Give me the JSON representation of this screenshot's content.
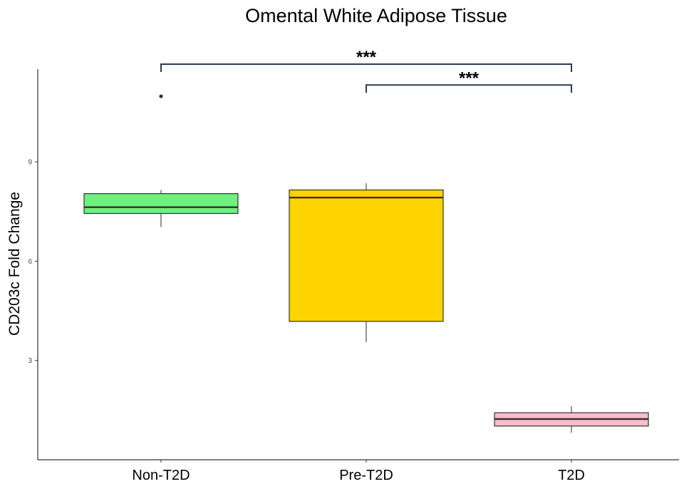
{
  "chart_data": {
    "type": "box",
    "title": "Omental White Adipose Tissue",
    "xlabel": "",
    "ylabel": "CD203c Fold Change",
    "ylim": [
      0.0,
      11.8
    ],
    "yticks": [
      3,
      6,
      9
    ],
    "grid": false,
    "legend": "none",
    "categories": [
      "Non-T2D",
      "Pre-T2D",
      "T2D"
    ],
    "boxes": [
      {
        "category": "Non-T2D",
        "whisker_low": 7.03,
        "q1": 7.44,
        "median": 7.63,
        "q3": 8.04,
        "whisker_high": 8.15,
        "outliers": [
          10.98
        ],
        "color": "#6ef07e"
      },
      {
        "category": "Pre-T2D",
        "whisker_low": 3.55,
        "q1": 4.18,
        "median": 7.92,
        "q3": 8.15,
        "whisker_high": 8.35,
        "outliers": [],
        "color": "#fdd300"
      },
      {
        "category": "T2D",
        "whisker_low": 0.82,
        "q1": 1.02,
        "median": 1.23,
        "q3": 1.42,
        "whisker_high": 1.62,
        "outliers": [],
        "color": "#ffbccb"
      }
    ],
    "significance": [
      {
        "from": "Non-T2D",
        "to": "T2D",
        "label": "***",
        "y": 11.95
      },
      {
        "from": "Pre-T2D",
        "to": "T2D",
        "label": "***",
        "y": 11.32
      }
    ]
  }
}
